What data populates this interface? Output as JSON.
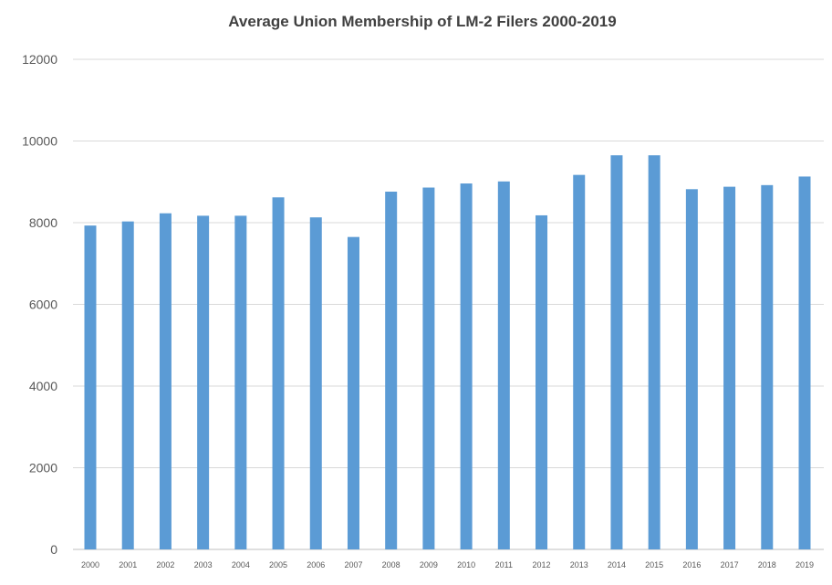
{
  "chart_data": {
    "type": "bar",
    "title": "Average Union Membership of LM-2 Filers 2000-2019",
    "xlabel": "",
    "ylabel": "",
    "ylim": [
      0,
      12000
    ],
    "yticks": [
      "0",
      "2000",
      "4000",
      "6000",
      "8000",
      "10000",
      "12000"
    ],
    "grid": true,
    "legend": "none",
    "bar_color": "#5b9bd5",
    "categories": [
      "2000",
      "2001",
      "2002",
      "2003",
      "2004",
      "2005",
      "2006",
      "2007",
      "2008",
      "2009",
      "2010",
      "2011",
      "2012",
      "2013",
      "2014",
      "2015",
      "2016",
      "2017",
      "2018",
      "2019"
    ],
    "values": [
      7930,
      8030,
      8230,
      8170,
      8170,
      8620,
      8130,
      7650,
      8760,
      8860,
      8960,
      9010,
      8180,
      9170,
      9650,
      9650,
      8820,
      8880,
      8920,
      9130
    ]
  }
}
